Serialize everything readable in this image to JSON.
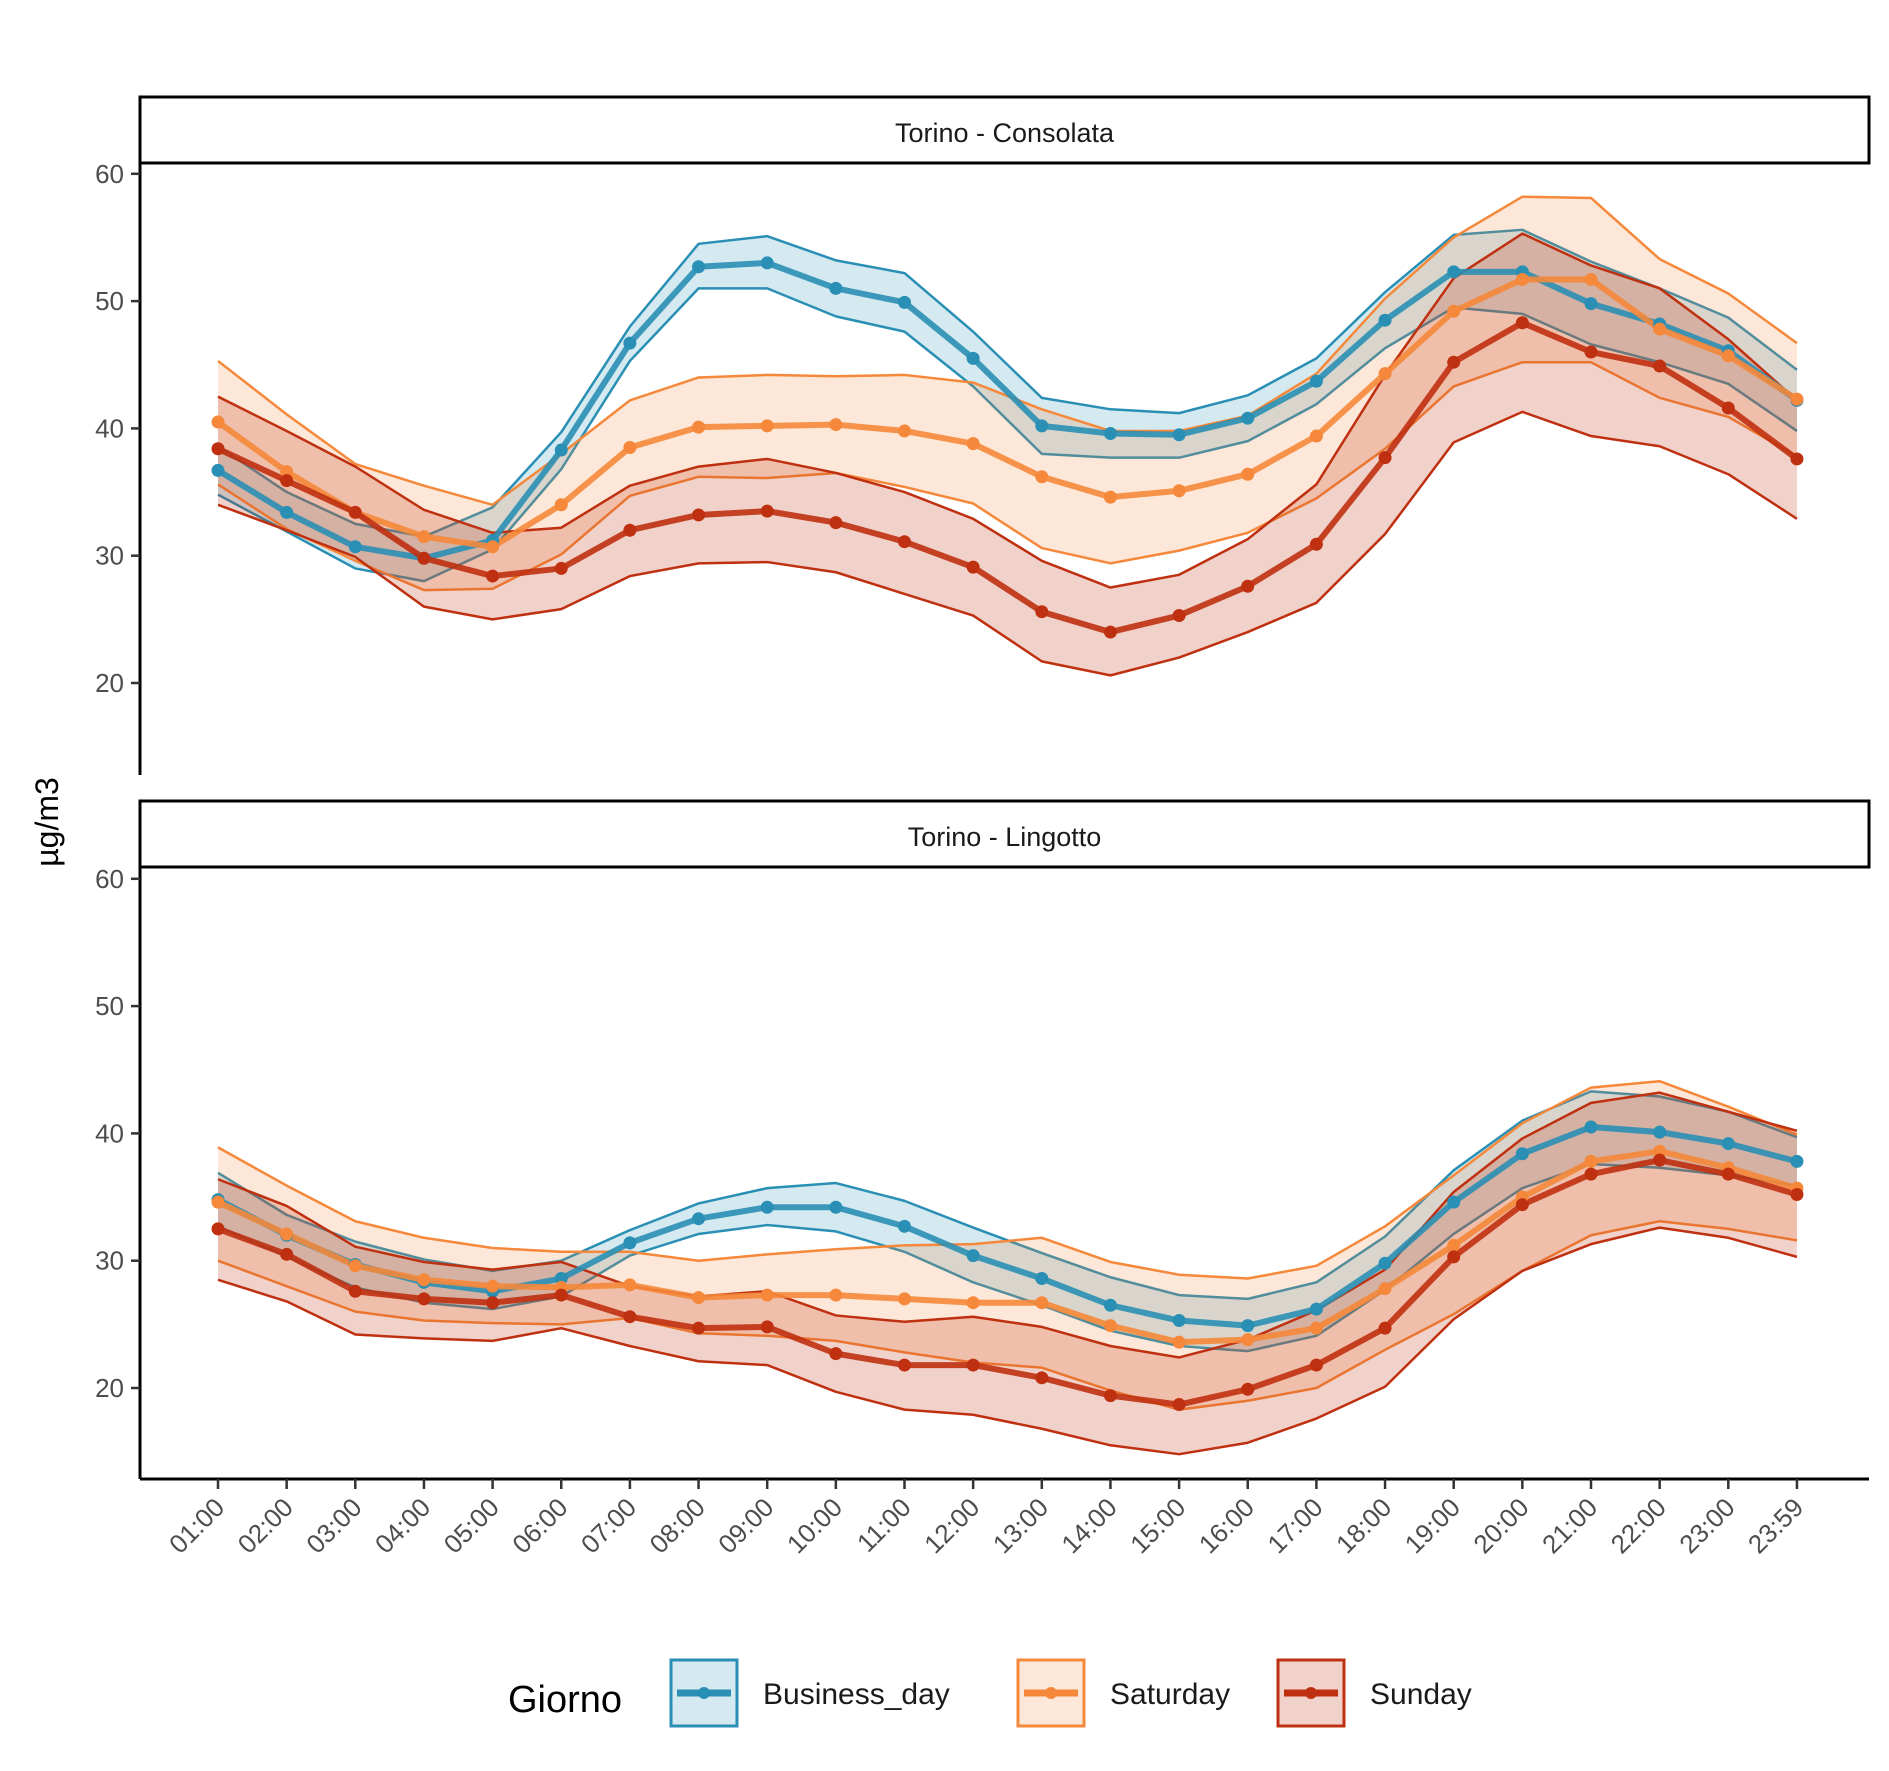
{
  "chart_data": {
    "type": "line",
    "ylabel": "µg/m3",
    "xlabel": "",
    "x": [
      "01:00",
      "02:00",
      "03:00",
      "04:00",
      "05:00",
      "06:00",
      "07:00",
      "08:00",
      "09:00",
      "10:00",
      "11:00",
      "12:00",
      "13:00",
      "14:00",
      "15:00",
      "16:00",
      "17:00",
      "18:00",
      "19:00",
      "20:00",
      "21:00",
      "22:00",
      "23:00",
      "23:59"
    ],
    "yticks": [
      20,
      30,
      40,
      50,
      60
    ],
    "ylim": [
      13,
      66
    ],
    "grid": false,
    "legend": {
      "title": "Giorno",
      "position": "bottom",
      "entries": [
        "Business_day",
        "Saturday",
        "Sunday"
      ]
    },
    "colors": {
      "Business_day": "#2a8fb4",
      "Saturday": "#f5883a",
      "Sunday": "#bf3010"
    },
    "panels": [
      {
        "title": "Torino - Consolata",
        "series": [
          {
            "name": "Business_day",
            "values": [
              36.7,
              33.4,
              30.7,
              29.8,
              31.2,
              38.3,
              46.7,
              52.7,
              53.0,
              51.0,
              49.9,
              45.5,
              40.2,
              39.6,
              39.5,
              40.8,
              43.7,
              48.5,
              52.3,
              52.3,
              49.8,
              48.2,
              46.1,
              42.2
            ],
            "upper": [
              38.6,
              35.0,
              32.5,
              31.5,
              33.8,
              39.7,
              48.0,
              54.5,
              55.1,
              53.2,
              52.2,
              47.6,
              42.4,
              41.5,
              41.2,
              42.6,
              45.5,
              50.7,
              55.2,
              55.6,
              53.1,
              51.0,
              48.7,
              44.6
            ],
            "lower": [
              34.8,
              31.9,
              29.0,
              28.0,
              30.5,
              36.8,
              45.3,
              51.0,
              51.0,
              48.8,
              47.6,
              43.3,
              38.0,
              37.7,
              37.7,
              39.0,
              41.9,
              46.3,
              49.5,
              49.0,
              46.6,
              45.2,
              43.5,
              39.8
            ]
          },
          {
            "name": "Saturday",
            "values": [
              40.5,
              36.6,
              33.4,
              31.5,
              30.7,
              34.0,
              38.5,
              40.1,
              40.2,
              40.3,
              39.8,
              38.8,
              36.2,
              34.6,
              35.1,
              36.4,
              39.4,
              44.3,
              49.2,
              51.7,
              51.7,
              47.8,
              45.7,
              42.3
            ],
            "upper": [
              45.3,
              41.1,
              37.2,
              35.5,
              34.0,
              38.0,
              42.2,
              44.0,
              44.2,
              44.1,
              44.2,
              43.6,
              41.5,
              39.8,
              39.8,
              41.0,
              44.3,
              50.2,
              55.0,
              58.2,
              58.1,
              53.3,
              50.6,
              46.7
            ],
            "lower": [
              35.6,
              32.1,
              29.6,
              27.3,
              27.4,
              30.1,
              34.7,
              36.2,
              36.1,
              36.5,
              35.4,
              34.1,
              30.6,
              29.4,
              30.4,
              31.8,
              34.5,
              38.4,
              43.3,
              45.2,
              45.2,
              42.4,
              40.9,
              37.8
            ]
          },
          {
            "name": "Sunday",
            "values": [
              38.4,
              35.9,
              33.4,
              29.8,
              28.4,
              29.0,
              32.0,
              33.2,
              33.5,
              32.6,
              31.1,
              29.1,
              25.6,
              24.0,
              25.3,
              27.6,
              30.9,
              37.7,
              45.2,
              48.3,
              46.0,
              44.9,
              41.6,
              37.6
            ],
            "upper": [
              42.5,
              39.8,
              37.0,
              33.6,
              31.8,
              32.2,
              35.5,
              37.0,
              37.6,
              36.5,
              35.0,
              32.9,
              29.6,
              27.5,
              28.5,
              31.3,
              35.6,
              44.2,
              51.8,
              55.3,
              52.8,
              51.0,
              47.0,
              42.2
            ],
            "lower": [
              34.0,
              32.0,
              29.9,
              26.0,
              25.0,
              25.8,
              28.4,
              29.4,
              29.5,
              28.7,
              27.0,
              25.3,
              21.7,
              20.6,
              22.0,
              24.0,
              26.3,
              31.7,
              38.9,
              41.3,
              39.4,
              38.6,
              36.4,
              32.9
            ]
          }
        ]
      },
      {
        "title": "Torino - Lingotto",
        "series": [
          {
            "name": "Business_day",
            "values": [
              34.8,
              32.0,
              29.7,
              28.3,
              27.6,
              28.6,
              31.4,
              33.3,
              34.2,
              34.2,
              32.7,
              30.4,
              28.6,
              26.5,
              25.3,
              24.9,
              26.2,
              29.8,
              34.6,
              38.4,
              40.5,
              40.1,
              39.2,
              37.8
            ],
            "upper": [
              36.9,
              33.6,
              31.5,
              30.1,
              29.2,
              30.0,
              32.4,
              34.5,
              35.7,
              36.1,
              34.7,
              32.6,
              30.6,
              28.7,
              27.3,
              27.0,
              28.3,
              31.9,
              37.1,
              41.0,
              43.3,
              42.9,
              41.7,
              39.7
            ],
            "lower": [
              32.7,
              30.3,
              27.9,
              26.7,
              26.2,
              27.2,
              30.4,
              32.1,
              32.8,
              32.3,
              30.7,
              28.3,
              26.5,
              24.5,
              23.3,
              22.9,
              24.1,
              27.7,
              32.1,
              35.7,
              37.6,
              37.3,
              36.7,
              35.9
            ]
          },
          {
            "name": "Saturday",
            "values": [
              34.6,
              32.1,
              29.6,
              28.5,
              28.0,
              27.9,
              28.1,
              27.1,
              27.3,
              27.3,
              27.0,
              26.7,
              26.7,
              24.9,
              23.6,
              23.8,
              24.7,
              27.8,
              31.2,
              35.0,
              37.8,
              38.6,
              37.3,
              35.7
            ],
            "upper": [
              38.9,
              35.9,
              33.1,
              31.8,
              31.0,
              30.7,
              30.7,
              30.0,
              30.5,
              30.9,
              31.2,
              31.3,
              31.8,
              29.9,
              28.9,
              28.6,
              29.6,
              32.7,
              36.7,
              40.8,
              43.6,
              44.1,
              42.1,
              39.9
            ],
            "lower": [
              30.0,
              28.0,
              26.0,
              25.3,
              25.1,
              25.0,
              25.5,
              24.3,
              24.1,
              23.7,
              22.8,
              22.0,
              21.6,
              19.8,
              18.3,
              19.0,
              20.0,
              23.0,
              25.8,
              29.2,
              32.0,
              33.1,
              32.5,
              31.6
            ]
          },
          {
            "name": "Sunday",
            "values": [
              32.5,
              30.5,
              27.6,
              27.0,
              26.7,
              27.3,
              25.6,
              24.7,
              24.8,
              22.7,
              21.8,
              21.8,
              20.8,
              19.4,
              18.7,
              19.9,
              21.8,
              24.7,
              30.3,
              34.4,
              36.8,
              37.9,
              36.8,
              35.2
            ],
            "upper": [
              36.4,
              34.3,
              31.1,
              29.9,
              29.3,
              29.9,
              28.0,
              27.2,
              27.6,
              25.7,
              25.2,
              25.6,
              24.8,
              23.3,
              22.4,
              23.8,
              26.1,
              29.3,
              35.4,
              39.6,
              42.4,
              43.2,
              41.7,
              40.2
            ],
            "lower": [
              28.5,
              26.8,
              24.2,
              23.9,
              23.7,
              24.7,
              23.3,
              22.1,
              21.8,
              19.7,
              18.3,
              17.9,
              16.8,
              15.5,
              14.8,
              15.7,
              17.6,
              20.1,
              25.4,
              29.2,
              31.3,
              32.6,
              31.8,
              30.3
            ]
          }
        ]
      }
    ]
  }
}
